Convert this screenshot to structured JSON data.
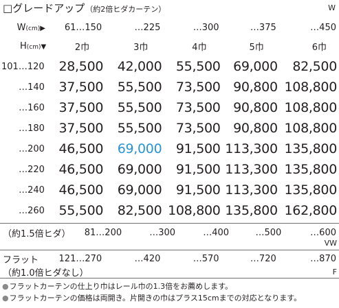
{
  "title": {
    "checkbox": "□",
    "text": "グレードアップ",
    "subtitle": "（約2倍ヒダカーテン）",
    "code": "W"
  },
  "width_header": {
    "label": "W",
    "unit": "(cm)",
    "marker": "▶",
    "values": [
      "61…150",
      "…225",
      "…300",
      "…375",
      "…450"
    ]
  },
  "height_header": {
    "label": "H",
    "unit": "(cm)",
    "marker": "▼",
    "panels": [
      "2巾",
      "3巾",
      "4巾",
      "5巾",
      "6巾"
    ]
  },
  "rows": [
    {
      "height": "101…120",
      "prices": [
        "28,500",
        "42,000",
        "55,500",
        "69,000",
        "82,500"
      ]
    },
    {
      "height": "…140",
      "prices": [
        "37,500",
        "55,500",
        "73,500",
        "90,800",
        "108,800"
      ]
    },
    {
      "height": "…160",
      "prices": [
        "37,500",
        "55,500",
        "73,500",
        "90,800",
        "108,800"
      ]
    },
    {
      "height": "…180",
      "prices": [
        "37,500",
        "55,500",
        "73,500",
        "90,800",
        "108,800"
      ]
    },
    {
      "height": "…200",
      "prices": [
        "46,500",
        "69,000",
        "91,500",
        "113,300",
        "135,800"
      ]
    },
    {
      "height": "…220",
      "prices": [
        "46,500",
        "69,000",
        "91,500",
        "113,300",
        "135,800"
      ]
    },
    {
      "height": "…240",
      "prices": [
        "46,500",
        "69,000",
        "91,500",
        "113,300",
        "135,800"
      ]
    },
    {
      "height": "…260",
      "prices": [
        "55,500",
        "82,500",
        "108,800",
        "135,800",
        "162,800"
      ]
    }
  ],
  "highlight_color": "#2a93d5",
  "pleat15": {
    "label": "（約1.5倍ヒダ）",
    "values": [
      "81…200",
      "…300",
      "…400",
      "…500",
      "…600"
    ],
    "code": "VW"
  },
  "flat": {
    "label_1": "フラット",
    "label_2": "（約1.0倍ヒダなし）",
    "values": [
      "121…270",
      "…420",
      "…570",
      "…720",
      "…870"
    ],
    "code": "F"
  },
  "notes": {
    "bullet": "●",
    "items": [
      "フラットカーテンの仕上り巾はレール巾の1.3倍をお薦めします。",
      "フラットカーテンの価格は両開き。片開きの巾はプラス15cmまでの対応となります。"
    ]
  }
}
